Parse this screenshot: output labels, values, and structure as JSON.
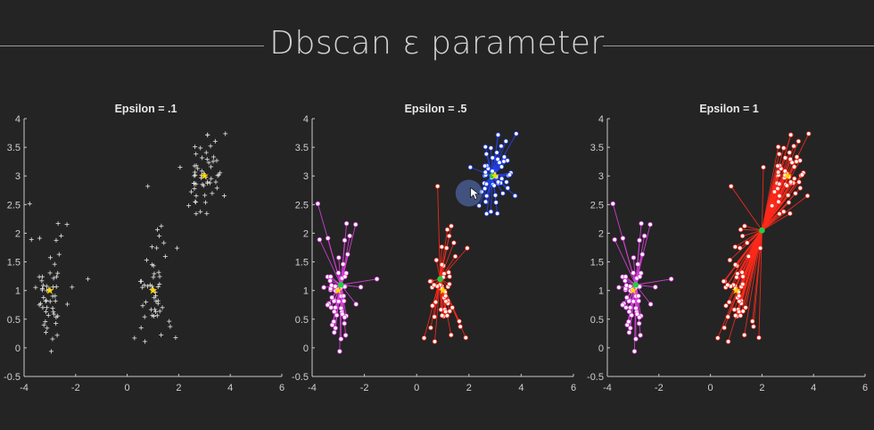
{
  "slide": {
    "title": "Dbscan ε parameter"
  },
  "colors": {
    "background": "#242424",
    "axis": "#c8c8c8",
    "noise": "#e6e6e6",
    "centroid_star": "#ffd700",
    "core_point": "#22cc44",
    "cluster_magenta": "#e040e0",
    "cluster_red": "#ff2a1a",
    "cluster_blue": "#2244ff",
    "cursor_halo": "#5a78c8"
  },
  "chart_data": [
    {
      "type": "scatter",
      "title": "Epsilon = .1",
      "xlim": [
        -4,
        6
      ],
      "ylim": [
        -0.5,
        4
      ],
      "xticks": [
        -4,
        -2,
        0,
        2,
        4,
        6
      ],
      "xtick_labels": [
        "-4",
        "-2",
        "0",
        "2",
        "4",
        "6"
      ],
      "yticks": [
        -0.5,
        0,
        0.5,
        1,
        1.5,
        2,
        2.5,
        3,
        3.5,
        4
      ],
      "ytick_labels": [
        "-0.5",
        "0",
        "0.5",
        "1",
        "1.5",
        "2",
        "2.5",
        "3",
        "3.5",
        "4"
      ],
      "grid": false,
      "marker": "plus",
      "centroids": [
        [
          -3,
          1
        ],
        [
          1,
          1
        ],
        [
          3,
          3
        ]
      ],
      "clusters": [],
      "noise_note": "all points unclustered"
    },
    {
      "type": "scatter",
      "title": "Epsilon = .5",
      "xlim": [
        -4,
        6
      ],
      "ylim": [
        -0.5,
        4
      ],
      "xticks": [
        -4,
        -2,
        0,
        2,
        4,
        6
      ],
      "xtick_labels": [
        "-4",
        "-2",
        "0",
        "2",
        "4",
        "6"
      ],
      "yticks": [
        -0.5,
        0,
        0.5,
        1,
        1.5,
        2,
        2.5,
        3,
        3.5,
        4
      ],
      "ytick_labels": [
        "-0.5",
        "0",
        "0.5",
        "1",
        "1.5",
        "2",
        "2.5",
        "3",
        "3.5",
        "4"
      ],
      "grid": false,
      "marker": "dot",
      "centroids": [
        [
          -3,
          1
        ],
        [
          1,
          1
        ],
        [
          3,
          3
        ]
      ],
      "clusters": [
        {
          "color": "magenta",
          "core": [
            -2.9,
            1.1
          ],
          "center": [
            -3,
            1
          ]
        },
        {
          "color": "red",
          "core": [
            0.9,
            1.2
          ],
          "center": [
            1,
            1
          ]
        },
        {
          "color": "blue",
          "core": [
            2.9,
            3.0
          ],
          "center": [
            3,
            3
          ]
        }
      ],
      "cursor": [
        2.0,
        2.7
      ]
    },
    {
      "type": "scatter",
      "title": "Epsilon = 1",
      "xlim": [
        -4,
        6
      ],
      "ylim": [
        -0.5,
        4
      ],
      "xticks": [
        -4,
        -2,
        0,
        2,
        4,
        6
      ],
      "xtick_labels": [
        "-4",
        "-2",
        "0",
        "2",
        "4",
        "6"
      ],
      "yticks": [
        -0.5,
        0,
        0.5,
        1,
        1.5,
        2,
        2.5,
        3,
        3.5,
        4
      ],
      "ytick_labels": [
        "-0.5",
        "0",
        "0.5",
        "1",
        "1.5",
        "2",
        "2.5",
        "3",
        "3.5",
        "4"
      ],
      "grid": false,
      "marker": "dot",
      "centroids": [
        [
          -3,
          1
        ],
        [
          1,
          1
        ],
        [
          3,
          3
        ]
      ],
      "clusters": [
        {
          "color": "magenta",
          "core": [
            -2.9,
            1.1
          ],
          "center": [
            -3,
            1
          ]
        },
        {
          "color": "red",
          "core": [
            2.0,
            2.05
          ],
          "center": [
            1,
            1
          ],
          "merged_with": [
            3,
            3
          ]
        }
      ]
    }
  ]
}
